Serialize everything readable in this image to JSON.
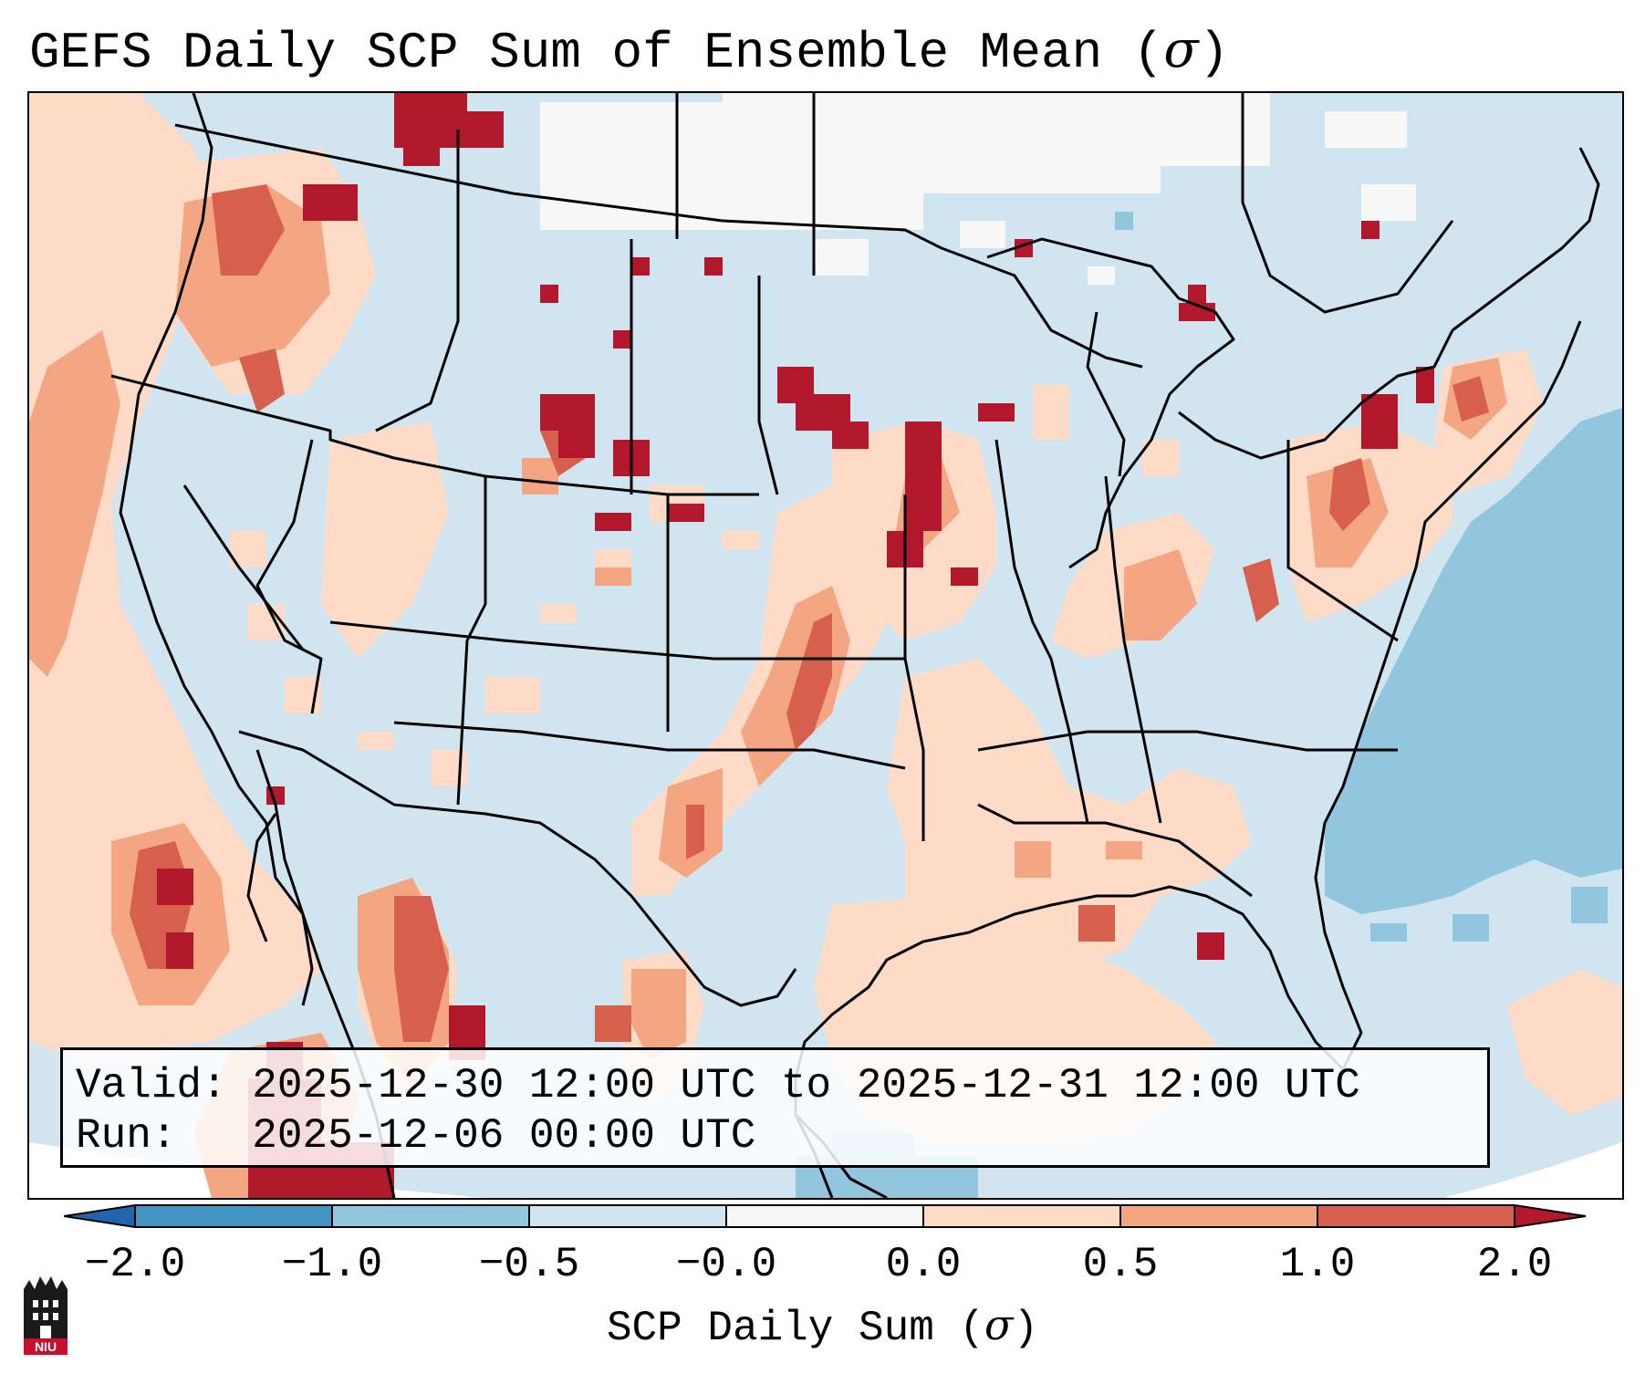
{
  "title": {
    "prefix": "GEFS Daily SCP Sum of Ensemble Mean (",
    "symbol": "σ",
    "suffix": ")"
  },
  "info": {
    "valid_label": "Valid:",
    "valid_value": "2025-12-30 12:00 UTC to 2025-12-31 12:00 UTC",
    "run_label": "Run:",
    "run_value": "2025-12-06 00:00 UTC"
  },
  "colorbar": {
    "ticks": [
      "−2.0",
      "−1.0",
      "−0.5",
      "−0.0",
      "0.0",
      "0.5",
      "1.0",
      "2.0"
    ],
    "label_prefix": "SCP Daily Sum (",
    "label_symbol": "σ",
    "label_suffix": ")",
    "colors": [
      "#4393c3",
      "#92c5de",
      "#d1e5f0",
      "#f7f7f7",
      "#fddbc7",
      "#f4a582",
      "#d6604d",
      "#b2182b"
    ]
  },
  "logo": {
    "text": "NIU"
  },
  "colors": {
    "background_ocean": "#d0e3f0",
    "land_base": "#d1e5f0",
    "positive_low": "#fddbc7",
    "positive_mid": "#f4a582",
    "positive_high": "#d6604d",
    "positive_max": "#b2182b",
    "negative_mid": "#92c5de",
    "neutral": "#f7f7f7",
    "border": "#000000"
  }
}
